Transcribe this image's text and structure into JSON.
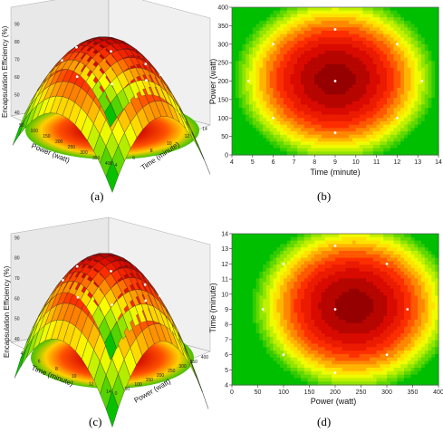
{
  "colors": {
    "surface_high": "#b50000",
    "surface_mid": "#ff3a00",
    "surface_low": "#ffff00",
    "surface_min": "#00c000",
    "design_point": "#ffffff"
  },
  "panel_labels": [
    "(a)",
    "(b)",
    "(c)",
    "(d)"
  ],
  "chart_data": [
    {
      "type": "surface3d",
      "panel": "(a)",
      "zlabel": "Encapsulation Efficiency (%)",
      "xlabel": "Time (minute)",
      "ylabel": "Power (watt)",
      "z_ticks": [
        "40",
        "50",
        "60",
        "70",
        "80",
        "90"
      ],
      "x_ticks": [
        "4",
        "6",
        "8",
        "10",
        "12",
        "14"
      ],
      "y_ticks": [
        "50",
        "100",
        "150",
        "200",
        "250",
        "300",
        "350",
        "400"
      ],
      "zlim": [
        40,
        90
      ],
      "optimum": {
        "time": 9,
        "power": 200,
        "efficiency": 88
      }
    },
    {
      "type": "heatmap",
      "panel": "(b)",
      "xlabel": "Time (minute)",
      "ylabel": "Power (watt)",
      "xlim": [
        4,
        14
      ],
      "ylim": [
        0,
        400
      ],
      "x_ticks": [
        "4",
        "5",
        "6",
        "7",
        "8",
        "9",
        "10",
        "11",
        "12",
        "13",
        "14"
      ],
      "y_ticks": [
        "0",
        "50",
        "100",
        "150",
        "200",
        "250",
        "300",
        "350",
        "400"
      ],
      "center": {
        "x": 9,
        "y": 205
      },
      "points": [
        {
          "x": 9,
          "y": 340
        },
        {
          "x": 6,
          "y": 300
        },
        {
          "x": 12,
          "y": 300
        },
        {
          "x": 4.8,
          "y": 200
        },
        {
          "x": 9,
          "y": 200
        },
        {
          "x": 13.2,
          "y": 200
        },
        {
          "x": 6,
          "y": 100
        },
        {
          "x": 12,
          "y": 100
        },
        {
          "x": 9,
          "y": 60
        }
      ]
    },
    {
      "type": "surface3d",
      "panel": "(c)",
      "zlabel": "Encapsulation Efficiency (%)",
      "xlabel": "Power (watt)",
      "ylabel": "Time (minute)",
      "z_ticks": [
        "40",
        "50",
        "60",
        "70",
        "80",
        "90"
      ],
      "x_ticks": [
        "0",
        "50",
        "100",
        "150",
        "200",
        "250",
        "300",
        "350",
        "400"
      ],
      "y_ticks": [
        "4",
        "6",
        "8",
        "10",
        "12",
        "14"
      ],
      "zlim": [
        40,
        90
      ],
      "optimum": {
        "time": 9,
        "power": 200,
        "efficiency": 88
      }
    },
    {
      "type": "heatmap",
      "panel": "(d)",
      "xlabel": "Power (watt)",
      "ylabel": "Time (minute)",
      "xlim": [
        0,
        400
      ],
      "ylim": [
        4,
        14
      ],
      "x_ticks": [
        "0",
        "50",
        "100",
        "150",
        "200",
        "250",
        "300",
        "350",
        "400"
      ],
      "y_ticks": [
        "4",
        "5",
        "6",
        "7",
        "8",
        "9",
        "10",
        "11",
        "12",
        "13",
        "14"
      ],
      "center": {
        "x": 235,
        "y": 9.2
      },
      "points": [
        {
          "x": 200,
          "y": 13.2
        },
        {
          "x": 100,
          "y": 12
        },
        {
          "x": 300,
          "y": 12
        },
        {
          "x": 60,
          "y": 9
        },
        {
          "x": 200,
          "y": 9
        },
        {
          "x": 340,
          "y": 9
        },
        {
          "x": 100,
          "y": 6
        },
        {
          "x": 300,
          "y": 6
        },
        {
          "x": 200,
          "y": 4.8
        }
      ]
    }
  ]
}
